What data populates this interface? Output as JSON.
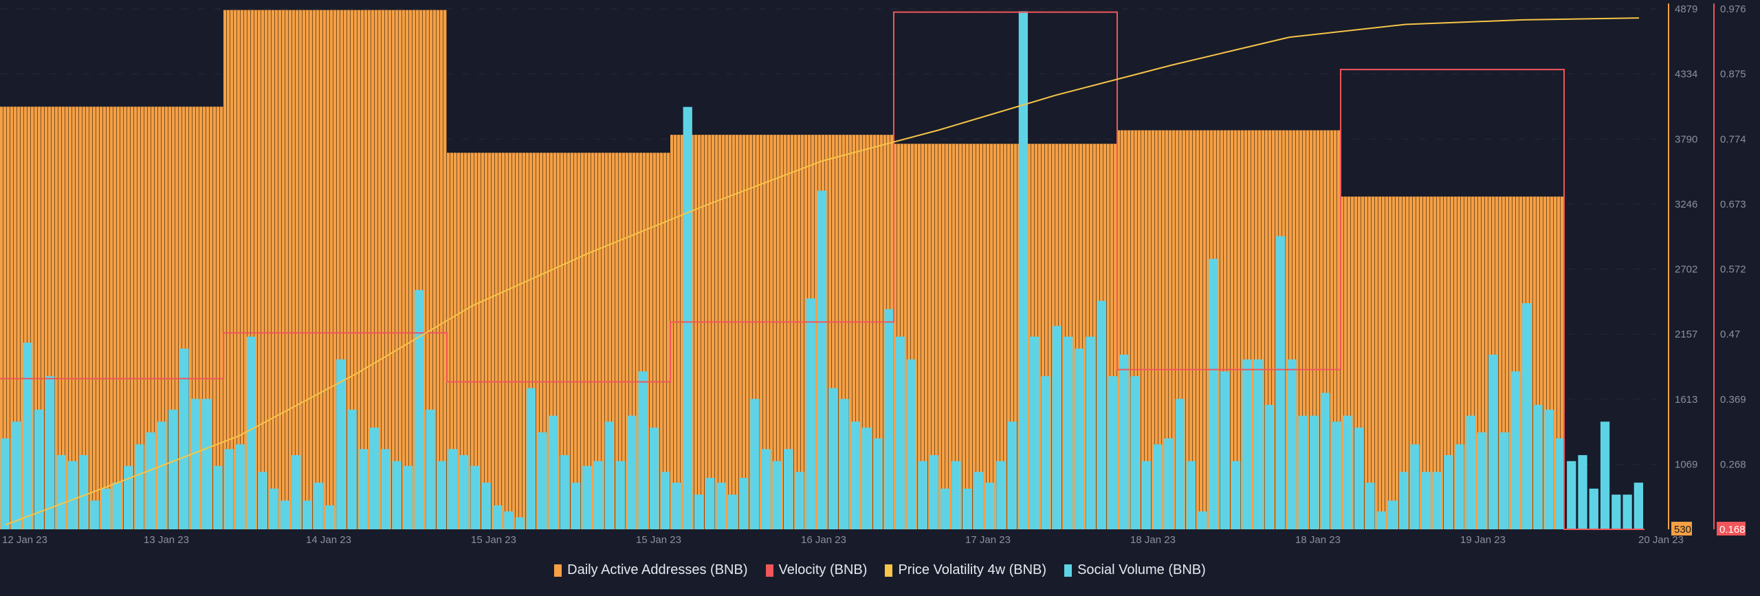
{
  "chart_data": {
    "type": "bar",
    "title": "",
    "x_tick_labels": [
      "12 Jan 23",
      "13 Jan 23",
      "14 Jan 23",
      "15 Jan 23",
      "15 Jan 23",
      "16 Jan 23",
      "17 Jan 23",
      "18 Jan 23",
      "18 Jan 23",
      "19 Jan 23",
      "20 Jan 23"
    ],
    "left_axis": {
      "ticks": [
        "4879",
        "4334",
        "3790",
        "3246",
        "2702",
        "2157",
        "1613",
        "1069"
      ],
      "current_value": "530",
      "range": [
        530,
        4879
      ],
      "color": "#f5a045"
    },
    "right_axis": {
      "ticks": [
        "0.976",
        "0.875",
        "0.774",
        "0.673",
        "0.572",
        "0.47",
        "0.369",
        "0.268"
      ],
      "current_value": "0.168",
      "range": [
        0.168,
        0.976
      ],
      "color": "#f0565a"
    },
    "grid": true,
    "legend_position": "bottom-center",
    "series": [
      {
        "name": "Daily Active Addresses (BNB)",
        "color": "#f5a045",
        "axis": "left",
        "type": "step-bar",
        "values": [
          4062,
          4870,
          3677,
          3827,
          3752,
          3865,
          3311,
          530
        ]
      },
      {
        "name": "Velocity (BNB)",
        "color": "#f0565a",
        "axis": "right",
        "type": "step-line",
        "values": [
          0.402,
          0.473,
          0.397,
          0.49,
          0.971,
          0.416,
          0.882,
          0.168
        ]
      },
      {
        "name": "Price Volatility 4w (BNB)",
        "color": "#f7c548",
        "axis": "right",
        "type": "line",
        "values": [
          0.175,
          0.243,
          0.313,
          0.409,
          0.515,
          0.597,
          0.671,
          0.74,
          0.788,
          0.842,
          0.889,
          0.932,
          0.952,
          0.959,
          0.962
        ]
      },
      {
        "name": "Social Volume (BNB)",
        "color": "#5fd3e6",
        "axis": "left",
        "type": "bar",
        "values": [
          1290,
          1430,
          2090,
          1530,
          1810,
          1150,
          1100,
          1150,
          770,
          870,
          920,
          1060,
          1240,
          1340,
          1430,
          1530,
          2040,
          1620,
          1620,
          1060,
          1200,
          1240,
          2140,
          1010,
          870,
          770,
          1150,
          770,
          920,
          730,
          1950,
          1530,
          1200,
          1380,
          1200,
          1100,
          1060,
          2530,
          1530,
          1100,
          1200,
          1150,
          1060,
          920,
          730,
          680,
          630,
          1710,
          1340,
          1480,
          1150,
          920,
          1060,
          1100,
          1430,
          1100,
          1480,
          1850,
          1380,
          1010,
          920,
          4060,
          820,
          960,
          920,
          820,
          960,
          1620,
          1200,
          1100,
          1200,
          1010,
          2460,
          3360,
          1710,
          1620,
          1430,
          1380,
          1290,
          2370,
          2140,
          1950,
          1100,
          1150,
          870,
          1100,
          870,
          1010,
          920,
          1100,
          1430,
          4860,
          2140,
          1810,
          2230,
          2140,
          2040,
          2140,
          2440,
          1810,
          1990,
          1810,
          1100,
          1240,
          1290,
          1620,
          1100,
          680,
          2790,
          1850,
          1100,
          1950,
          1950,
          1570,
          2980,
          1950,
          1480,
          1480,
          1670,
          1430,
          1480,
          1380,
          920,
          680,
          770,
          1010,
          1240,
          1010,
          1010,
          1150,
          1240,
          1480,
          1340,
          1990,
          1340,
          1850,
          2420,
          1570,
          1530,
          1290,
          1100,
          1150,
          870,
          1430,
          820,
          820,
          920
        ]
      }
    ]
  }
}
